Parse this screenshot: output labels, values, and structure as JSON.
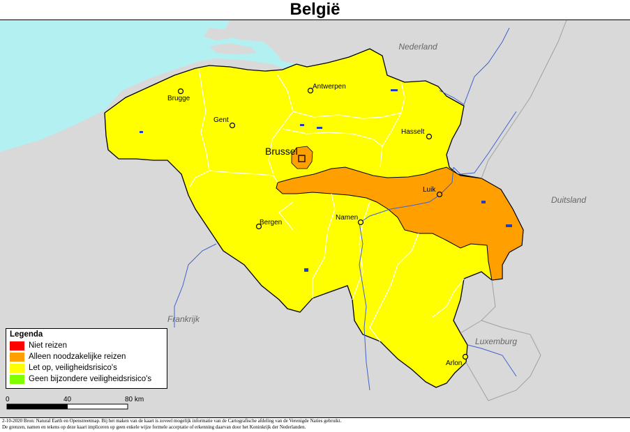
{
  "title": "België",
  "map": {
    "countries": {
      "nl": "Nederland",
      "de": "Duitsland",
      "fr": "Frankrijk",
      "lu": "Luxemburg"
    },
    "capital": "Brussel",
    "cities": {
      "antwerpen": "Antwerpen",
      "brugge": "Brugge",
      "gent": "Gent",
      "hasselt": "Hasselt",
      "luik": "Luik",
      "namen": "Namen",
      "bergen": "Bergen",
      "arlon": "Arlon"
    },
    "colors": {
      "sea": "#b3f0f2",
      "land": "#d9d9d9",
      "caution": "#ffff00",
      "essential": "#ff9f00",
      "border": "#000000",
      "water": "#1f3fbf"
    }
  },
  "legend": {
    "title": "Legenda",
    "items": [
      {
        "label": "Niet reizen",
        "color": "#ff0000"
      },
      {
        "label": "Alleen noodzakelijke reizen",
        "color": "#ff9f00"
      },
      {
        "label": "Let op, veiligheidsrisico's",
        "color": "#ffff00"
      },
      {
        "label": "Geen bijzondere veiligheidsrisico's",
        "color": "#7fff00"
      }
    ]
  },
  "scale": {
    "labels": [
      "0",
      "40",
      "80 km"
    ]
  },
  "footer": {
    "line1": "2-10-2020 Bron: Natural Earth en Openstreetmap. Bij het maken van de kaart is zoveel mogelijk informatie van de Cartografische afdeling van de Verenigde Naties gebruikt.",
    "line2": "De grenzen, namen en tekens op deze kaart impliceren op geen enkele wijze formele acceptatie of erkenning daarvan door het Koninkrijk der Nederlanden."
  }
}
